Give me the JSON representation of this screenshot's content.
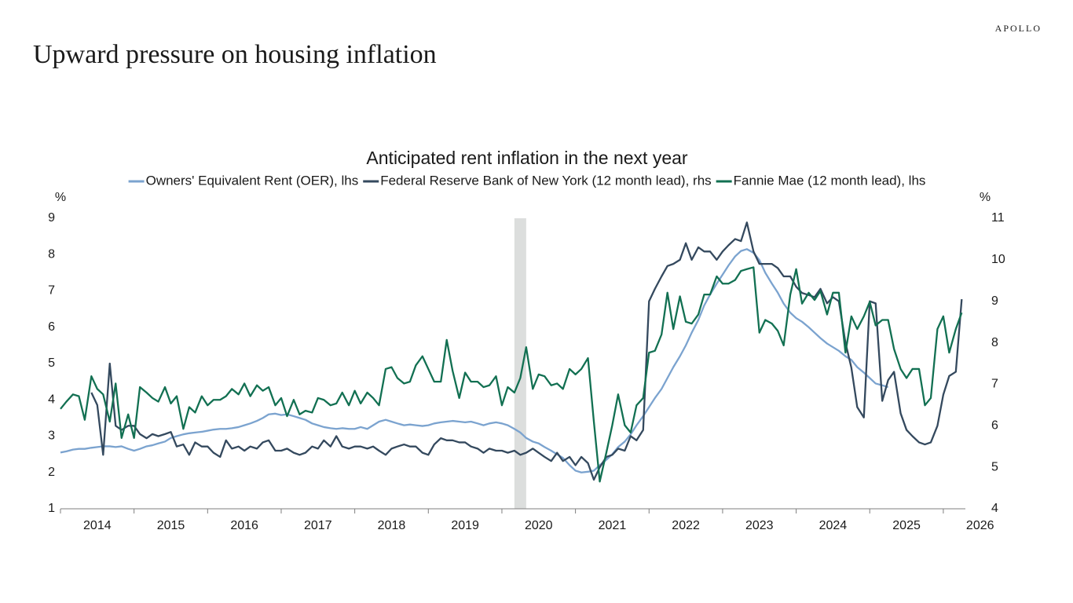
{
  "header": {
    "brand": "APOLLO",
    "title": "Upward pressure on housing inflation"
  },
  "chart_data": {
    "type": "line",
    "title": "Anticipated rent inflation in the next year",
    "ylabel": "%",
    "y2label": "%",
    "legend": "top",
    "xlim": [
      2014,
      2026.3
    ],
    "xticks": [
      2014,
      2015,
      2016,
      2017,
      2018,
      2019,
      2020,
      2021,
      2022,
      2023,
      2024,
      2025,
      2026
    ],
    "ylim": [
      1,
      9
    ],
    "yticks": [
      1,
      2,
      3,
      4,
      5,
      6,
      7,
      8,
      9
    ],
    "y2lim": [
      4,
      11
    ],
    "y2ticks": [
      4,
      5,
      6,
      7,
      8,
      9,
      10,
      11
    ],
    "shaded_periods": [
      [
        2020.17,
        2020.33
      ]
    ],
    "x": [
      2014.0,
      2014.08,
      2014.17,
      2014.25,
      2014.33,
      2014.42,
      2014.5,
      2014.58,
      2014.67,
      2014.75,
      2014.83,
      2014.92,
      2015.0,
      2015.08,
      2015.17,
      2015.25,
      2015.33,
      2015.42,
      2015.5,
      2015.58,
      2015.67,
      2015.75,
      2015.83,
      2015.92,
      2016.0,
      2016.08,
      2016.17,
      2016.25,
      2016.33,
      2016.42,
      2016.5,
      2016.58,
      2016.67,
      2016.75,
      2016.83,
      2016.92,
      2017.0,
      2017.08,
      2017.17,
      2017.25,
      2017.33,
      2017.42,
      2017.5,
      2017.58,
      2017.67,
      2017.75,
      2017.83,
      2017.92,
      2018.0,
      2018.08,
      2018.17,
      2018.25,
      2018.33,
      2018.42,
      2018.5,
      2018.58,
      2018.67,
      2018.75,
      2018.83,
      2018.92,
      2019.0,
      2019.08,
      2019.17,
      2019.25,
      2019.33,
      2019.42,
      2019.5,
      2019.58,
      2019.67,
      2019.75,
      2019.83,
      2019.92,
      2020.0,
      2020.08,
      2020.17,
      2020.25,
      2020.33,
      2020.42,
      2020.5,
      2020.58,
      2020.67,
      2020.75,
      2020.83,
      2020.92,
      2021.0,
      2021.08,
      2021.17,
      2021.25,
      2021.33,
      2021.42,
      2021.5,
      2021.58,
      2021.67,
      2021.75,
      2021.83,
      2021.92,
      2022.0,
      2022.08,
      2022.17,
      2022.25,
      2022.33,
      2022.42,
      2022.5,
      2022.58,
      2022.67,
      2022.75,
      2022.83,
      2022.92,
      2023.0,
      2023.08,
      2023.17,
      2023.25,
      2023.33,
      2023.42,
      2023.5,
      2023.58,
      2023.67,
      2023.75,
      2023.83,
      2023.92,
      2024.0,
      2024.08,
      2024.17,
      2024.25,
      2024.33,
      2024.42,
      2024.5,
      2024.58,
      2024.67,
      2024.75,
      2024.83,
      2024.92,
      2025.0,
      2025.08,
      2025.17,
      2025.25,
      2025.33,
      2025.42,
      2025.5,
      2025.58,
      2025.67,
      2025.75,
      2025.83,
      2025.92,
      2026.0,
      2026.08,
      2026.17,
      2026.25
    ],
    "series": [
      {
        "name": "Owners' Equivalent Rent (OER), lhs",
        "color": "#7ba3cf",
        "axis": "y",
        "values": [
          2.55,
          2.58,
          2.63,
          2.65,
          2.65,
          2.68,
          2.7,
          2.72,
          2.72,
          2.7,
          2.72,
          2.65,
          2.6,
          2.65,
          2.72,
          2.75,
          2.8,
          2.85,
          2.95,
          3.0,
          3.05,
          3.08,
          3.1,
          3.12,
          3.15,
          3.18,
          3.2,
          3.2,
          3.22,
          3.25,
          3.3,
          3.35,
          3.42,
          3.5,
          3.6,
          3.62,
          3.58,
          3.6,
          3.55,
          3.5,
          3.45,
          3.35,
          3.3,
          3.25,
          3.22,
          3.2,
          3.22,
          3.2,
          3.2,
          3.25,
          3.2,
          3.3,
          3.4,
          3.45,
          3.4,
          3.35,
          3.3,
          3.32,
          3.3,
          3.28,
          3.3,
          3.35,
          3.38,
          3.4,
          3.42,
          3.4,
          3.38,
          3.4,
          3.35,
          3.3,
          3.35,
          3.38,
          3.35,
          3.3,
          3.2,
          3.1,
          2.95,
          2.85,
          2.8,
          2.7,
          2.6,
          2.5,
          2.4,
          2.2,
          2.05,
          2.0,
          2.02,
          2.05,
          2.2,
          2.35,
          2.5,
          2.7,
          2.85,
          3.05,
          3.3,
          3.55,
          3.8,
          4.05,
          4.3,
          4.6,
          4.9,
          5.2,
          5.5,
          5.85,
          6.2,
          6.6,
          6.9,
          7.2,
          7.45,
          7.7,
          7.95,
          8.1,
          8.15,
          8.05,
          7.85,
          7.5,
          7.2,
          6.95,
          6.65,
          6.4,
          6.25,
          6.15,
          6.0,
          5.85,
          5.7,
          5.55,
          5.45,
          5.35,
          5.2,
          5.1,
          4.9,
          4.75,
          4.6,
          4.45,
          4.4,
          4.35,
          null,
          null,
          null,
          null,
          null,
          null,
          null,
          null,
          null,
          null,
          null,
          null
        ]
      },
      {
        "name": "Federal Reserve Bank of New York (12 month lead), rhs",
        "color": "#34495e",
        "axis": "y2",
        "values": [
          null,
          null,
          null,
          null,
          null,
          6.8,
          6.5,
          5.3,
          7.5,
          6.0,
          5.9,
          6.0,
          6.0,
          5.8,
          5.7,
          5.8,
          5.75,
          5.8,
          5.85,
          5.5,
          5.55,
          5.3,
          5.6,
          5.5,
          5.5,
          5.35,
          5.25,
          5.65,
          5.45,
          5.5,
          5.4,
          5.5,
          5.45,
          5.6,
          5.65,
          5.4,
          5.4,
          5.45,
          5.35,
          5.3,
          5.35,
          5.5,
          5.45,
          5.65,
          5.5,
          5.75,
          5.5,
          5.45,
          5.5,
          5.5,
          5.45,
          5.5,
          5.4,
          5.3,
          5.45,
          5.5,
          5.55,
          5.5,
          5.5,
          5.35,
          5.3,
          5.55,
          5.7,
          5.65,
          5.65,
          5.6,
          5.6,
          5.5,
          5.45,
          5.35,
          5.45,
          5.4,
          5.4,
          5.35,
          5.4,
          5.3,
          5.35,
          5.45,
          5.35,
          5.25,
          5.15,
          5.35,
          5.15,
          5.25,
          5.05,
          5.25,
          5.1,
          4.7,
          5.0,
          5.25,
          5.3,
          5.45,
          5.4,
          5.75,
          5.65,
          5.9,
          9.0,
          9.3,
          9.6,
          9.85,
          9.9,
          10.0,
          10.4,
          10.0,
          10.3,
          10.2,
          10.2,
          10.0,
          10.2,
          10.35,
          10.5,
          10.45,
          10.9,
          10.2,
          9.9,
          9.9,
          9.9,
          9.8,
          9.6,
          9.6,
          9.35,
          9.2,
          9.15,
          9.1,
          9.3,
          8.95,
          9.1,
          9.0,
          8.0,
          7.4,
          6.45,
          6.2,
          9.0,
          8.95,
          6.6,
          7.1,
          7.3,
          6.3,
          5.9,
          5.75,
          5.6,
          5.55,
          5.6,
          6.0,
          6.75,
          7.2,
          7.3,
          9.05
        ]
      },
      {
        "name": "Fannie Mae (12 month lead), lhs",
        "color": "#127052",
        "axis": "y",
        "values": [
          3.75,
          3.95,
          4.15,
          4.1,
          3.45,
          4.65,
          4.3,
          4.15,
          3.4,
          4.45,
          2.95,
          3.6,
          2.95,
          4.35,
          4.2,
          4.05,
          3.95,
          4.35,
          3.9,
          4.1,
          3.2,
          3.8,
          3.65,
          4.1,
          3.85,
          4.0,
          4.0,
          4.1,
          4.3,
          4.15,
          4.45,
          4.1,
          4.4,
          4.25,
          4.35,
          3.85,
          4.05,
          3.55,
          4.0,
          3.6,
          3.7,
          3.65,
          4.05,
          4.0,
          3.85,
          3.9,
          4.2,
          3.85,
          4.25,
          3.9,
          4.2,
          4.05,
          3.85,
          4.85,
          4.9,
          4.6,
          4.45,
          4.5,
          4.95,
          5.2,
          4.85,
          4.5,
          4.5,
          5.65,
          4.8,
          4.05,
          4.75,
          4.5,
          4.5,
          4.35,
          4.4,
          4.65,
          3.85,
          4.35,
          4.2,
          4.6,
          5.45,
          4.3,
          4.7,
          4.65,
          4.4,
          4.45,
          4.3,
          4.85,
          4.7,
          4.85,
          5.15,
          3.4,
          1.75,
          2.55,
          3.3,
          4.15,
          3.3,
          3.1,
          3.85,
          4.05,
          5.3,
          5.35,
          5.8,
          6.95,
          5.95,
          6.85,
          6.15,
          6.1,
          6.35,
          6.9,
          6.9,
          7.4,
          7.2,
          7.2,
          7.3,
          7.55,
          7.6,
          7.65,
          5.85,
          6.2,
          6.1,
          5.9,
          5.5,
          6.9,
          7.6,
          6.65,
          6.95,
          6.75,
          7.0,
          6.35,
          6.95,
          6.95,
          5.3,
          6.3,
          5.95,
          6.3,
          6.7,
          6.05,
          6.2,
          6.2,
          5.4,
          4.85,
          4.6,
          4.85,
          4.85,
          3.85,
          4.05,
          5.95,
          6.3,
          5.3,
          5.95,
          6.4
        ]
      }
    ]
  }
}
